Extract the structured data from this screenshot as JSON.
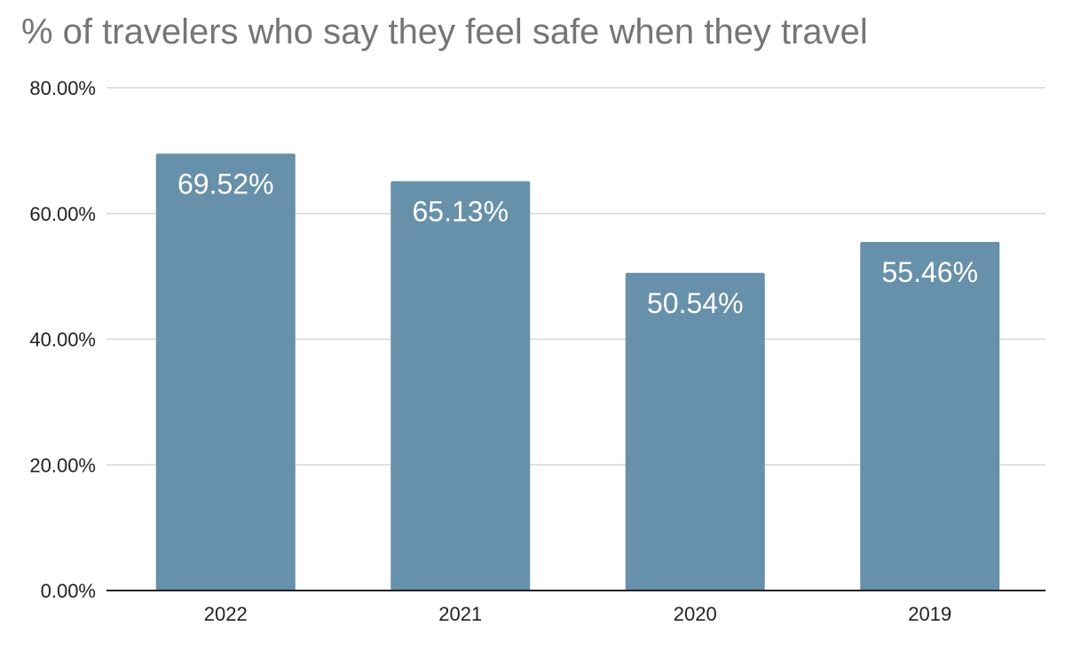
{
  "chart_data": {
    "type": "bar",
    "title": "% of travelers who say they feel safe when they travel",
    "categories": [
      "2022",
      "2021",
      "2020",
      "2019"
    ],
    "values": [
      69.52,
      65.13,
      50.54,
      55.46
    ],
    "data_labels": [
      "69.52%",
      "65.13%",
      "50.54%",
      "55.46%"
    ],
    "ylim": [
      0,
      80
    ],
    "yticks": [
      0,
      20,
      40,
      60,
      80
    ],
    "ytick_labels": [
      "0.00%",
      "20.00%",
      "40.00%",
      "60.00%",
      "80.00%"
    ],
    "xlabel": "",
    "ylabel": "",
    "grid": true,
    "legend": "none",
    "bar_color": "#6790aa",
    "grid_color": "#d6d6d6",
    "axis_color": "#222222"
  }
}
